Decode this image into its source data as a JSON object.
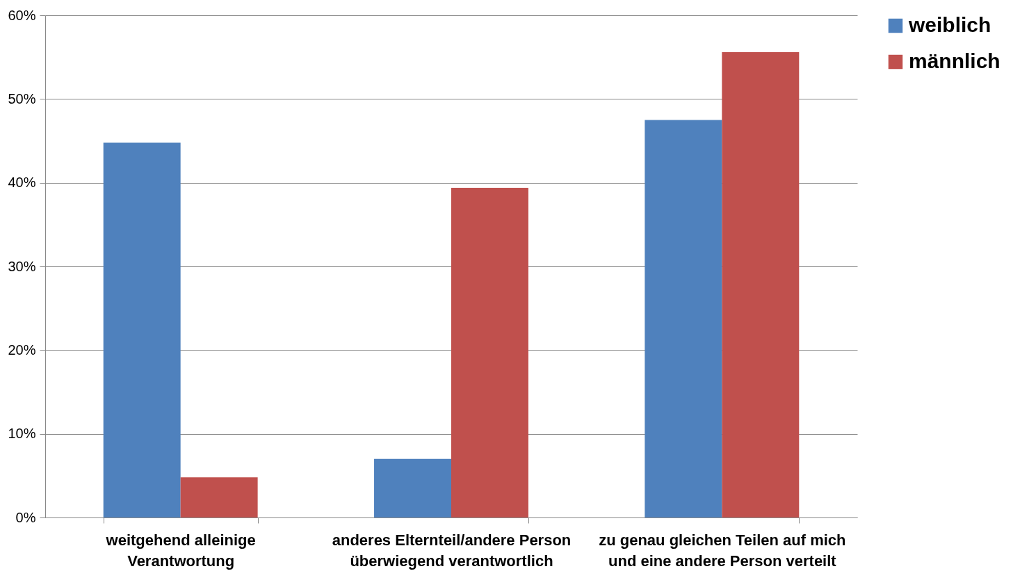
{
  "chart_data": {
    "type": "bar",
    "categories": [
      "weitgehend alleinige Verantwortung",
      "anderes Elternteil/andere Person überwiegend verantwortlich",
      "zu genau gleichen Teilen auf mich und eine andere Person verteilt"
    ],
    "series": [
      {
        "name": "weiblich",
        "color": "#4f81bd",
        "values": [
          44.8,
          7.0,
          47.5
        ]
      },
      {
        "name": "männlich",
        "color": "#c0504d",
        "values": [
          4.8,
          39.4,
          55.6
        ]
      }
    ],
    "ylim": [
      0,
      60
    ],
    "yticks": [
      {
        "value": 0,
        "label": "0%"
      },
      {
        "value": 10,
        "label": "10%"
      },
      {
        "value": 20,
        "label": "20%"
      },
      {
        "value": 30,
        "label": "30%"
      },
      {
        "value": 40,
        "label": "40%"
      },
      {
        "value": 50,
        "label": "50%"
      },
      {
        "value": 60,
        "label": "60%"
      }
    ],
    "grid": "y",
    "legend": "right"
  }
}
